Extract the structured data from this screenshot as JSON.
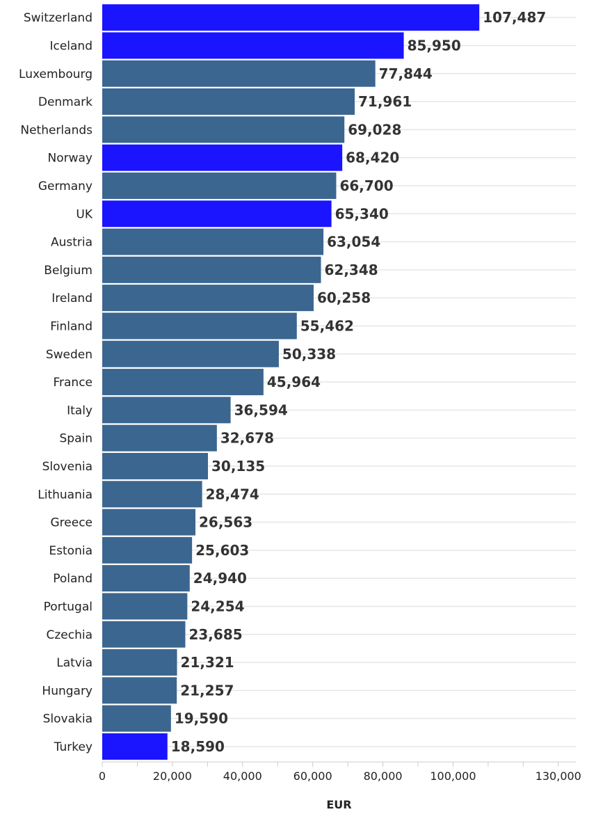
{
  "chart_data": {
    "type": "bar",
    "orientation": "horizontal",
    "categories": [
      "Switzerland",
      "Iceland",
      "Luxembourg",
      "Denmark",
      "Netherlands",
      "Norway",
      "Germany",
      "UK",
      "Austria",
      "Belgium",
      "Ireland",
      "Finland",
      "Sweden",
      "France",
      "Italy",
      "Spain",
      "Slovenia",
      "Lithuania",
      "Greece",
      "Estonia",
      "Poland",
      "Portugal",
      "Czechia",
      "Latvia",
      "Hungary",
      "Slovakia",
      "Turkey"
    ],
    "values": [
      107487,
      85950,
      77844,
      71961,
      69028,
      68420,
      66700,
      65340,
      63054,
      62348,
      60258,
      55462,
      50338,
      45964,
      36594,
      32678,
      30135,
      28474,
      26563,
      25603,
      24940,
      24254,
      23685,
      21321,
      21257,
      19590,
      18590
    ],
    "value_labels": [
      "107,487",
      "85,950",
      "77,844",
      "71,961",
      "69,028",
      "68,420",
      "66,700",
      "65,340",
      "63,054",
      "62,348",
      "60,258",
      "55,462",
      "50,338",
      "45,964",
      "36,594",
      "32,678",
      "30,135",
      "28,474",
      "26,563",
      "25,603",
      "24,940",
      "24,254",
      "23,685",
      "21,321",
      "21,257",
      "19,590",
      "18,590"
    ],
    "highlighted": [
      "Switzerland",
      "Iceland",
      "Norway",
      "UK",
      "Turkey"
    ],
    "colors": {
      "default": "#3b668f",
      "highlight": "#1a14ff"
    },
    "xlabel": "EUR",
    "xlim": [
      0,
      135000
    ],
    "ticks": [
      0,
      20000,
      40000,
      60000,
      80000,
      100000,
      130000
    ],
    "tick_labels": [
      "0",
      "20,000",
      "40,000",
      "60,000",
      "80,000",
      "100,000",
      "130,000"
    ],
    "minor_ticks": [
      10000,
      30000,
      50000,
      70000,
      90000,
      110000,
      120000
    ],
    "grid": true
  }
}
